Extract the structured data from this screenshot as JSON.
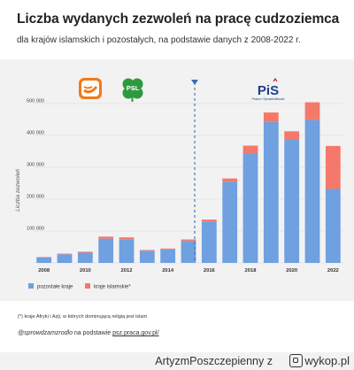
{
  "header": {
    "title": "Liczba wydanych zezwoleń na pracę cudzoziemca",
    "subtitle": "dla krajów islamskich i pozostałych, na podstawie danych z 2008-2022 r."
  },
  "logos": {
    "psl": "PSL",
    "pis": "PiS",
    "pis_tagline": "Prawo i Sprawiedliwość"
  },
  "chart_data": {
    "type": "bar",
    "stacked": true,
    "categories": [
      "2008",
      "2009",
      "2010",
      "2011",
      "2012",
      "2013",
      "2014",
      "2015",
      "2016",
      "2017",
      "2018",
      "2019",
      "2020",
      "2021",
      "2022"
    ],
    "x_tick_labels": [
      "2008",
      "",
      "2010",
      "",
      "2012",
      "",
      "2014",
      "",
      "2016",
      "",
      "2018",
      "",
      "2020",
      "",
      "2022"
    ],
    "series": [
      {
        "name": "pozostałe kraje",
        "color": "#6fa0e0",
        "values": [
          17000,
          27000,
          32000,
          76000,
          73000,
          38000,
          42000,
          69000,
          130000,
          255000,
          343000,
          442000,
          386000,
          449000,
          232000
        ]
      },
      {
        "name": "kraje islamskie*",
        "color": "#f4796b",
        "values": [
          1500,
          2000,
          3000,
          6500,
          7000,
          2500,
          3000,
          4500,
          6000,
          10000,
          25000,
          30000,
          27000,
          55000,
          135000
        ]
      }
    ],
    "ylabel": "Liczba zezwoleń",
    "ylim": [
      0,
      520000
    ],
    "yticks": [
      0,
      100000,
      200000,
      300000,
      400000,
      500000
    ],
    "ytick_labels": [
      "",
      "100 000",
      "200 000",
      "300 000",
      "400 000",
      "500 000"
    ],
    "grid": true,
    "legend_position": "bottom-left",
    "annotation": "vertical dashed line between 2015 and 2016"
  },
  "footer": {
    "footnote": "(*) kraje Afryki i Azji, w których dominującą religią jest islam",
    "source_handle": "@sprowdzamzrodlo",
    "source_text": " na podstawie ",
    "source_link": "psz.praca.gov.pl/"
  },
  "watermark": {
    "user": "ArtyzmPoszczepienny",
    "sep": "z",
    "site": "wykop.pl"
  }
}
